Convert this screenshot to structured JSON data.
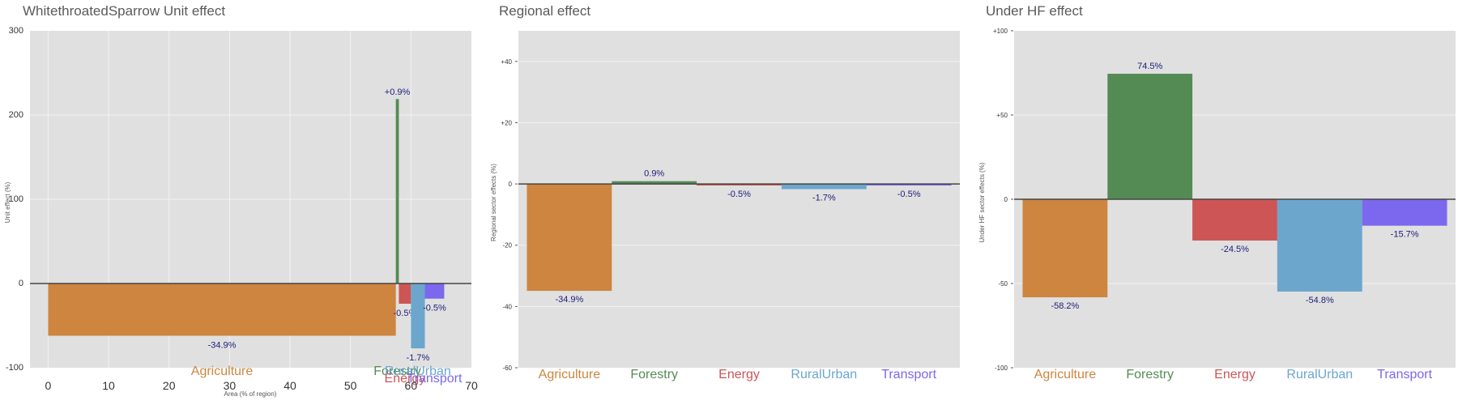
{
  "colors": {
    "Agriculture": "#cd853f",
    "Forestry": "#548b54",
    "Energy": "#cd5555",
    "RuralUrban": "#6ca6cd",
    "Transport": "#7b68ee",
    "panel_bg": "#e0e0e0",
    "grid": "#f2f2f2",
    "zero_line": "#444444",
    "data_label": "#1c1c7a"
  },
  "chart_data": [
    {
      "type": "bar",
      "title": "WhitethroatedSparrow Unit effect",
      "xlabel": "Area (% of region)",
      "ylabel": "Unit effect (%)",
      "xlim": [
        -3,
        70
      ],
      "ylim": [
        -100,
        300
      ],
      "xticks": [
        0,
        10,
        20,
        30,
        40,
        50,
        60,
        70
      ],
      "yticks": [
        -100,
        0,
        100,
        200,
        300
      ],
      "grid": true,
      "series": [
        {
          "name": "Agriculture",
          "x_start": 0,
          "x_end": 57.5,
          "value": -62,
          "label": "-34.9%"
        },
        {
          "name": "Forestry",
          "x_start": 57.5,
          "x_end": 58.0,
          "value": 219,
          "label": "+0.9%"
        },
        {
          "name": "Energy",
          "x_start": 58.0,
          "x_end": 60.0,
          "value": -24,
          "label": "-0.5%"
        },
        {
          "name": "RuralUrban",
          "x_start": 60.0,
          "x_end": 62.3,
          "value": -77,
          "label": "-1.7%"
        },
        {
          "name": "Transport",
          "x_start": 62.3,
          "x_end": 65.5,
          "value": -18,
          "label": "-0.5%"
        }
      ]
    },
    {
      "type": "bar",
      "title": "Regional effect",
      "xlabel": "",
      "ylabel": "Regional sector effects (%)",
      "ylim": [
        -60,
        50
      ],
      "yticks": [
        -60,
        -40,
        -20,
        0,
        20,
        40
      ],
      "ytick_labels": [
        "-60",
        "-40",
        "-20",
        "0",
        "+20",
        "+40"
      ],
      "grid": true,
      "categories": [
        "Agriculture",
        "Forestry",
        "Energy",
        "RuralUrban",
        "Transport"
      ],
      "values": [
        -34.9,
        0.9,
        -0.5,
        -1.7,
        -0.5
      ],
      "labels": [
        "-34.9%",
        "0.9%",
        "-0.5%",
        "-1.7%",
        "-0.5%"
      ]
    },
    {
      "type": "bar",
      "title": "Under HF effect",
      "xlabel": "",
      "ylabel": "Under HF sector effects (%)",
      "ylim": [
        -100,
        100
      ],
      "yticks": [
        -100,
        -50,
        0,
        50,
        100
      ],
      "ytick_labels": [
        "-100",
        "-50",
        "0",
        "+50",
        "+100"
      ],
      "grid": true,
      "categories": [
        "Agriculture",
        "Forestry",
        "Energy",
        "RuralUrban",
        "Transport"
      ],
      "values": [
        -58.2,
        74.5,
        -24.5,
        -54.8,
        -15.7
      ],
      "labels": [
        "-58.2%",
        "74.5%",
        "-24.5%",
        "-54.8%",
        "-15.7%"
      ]
    }
  ]
}
